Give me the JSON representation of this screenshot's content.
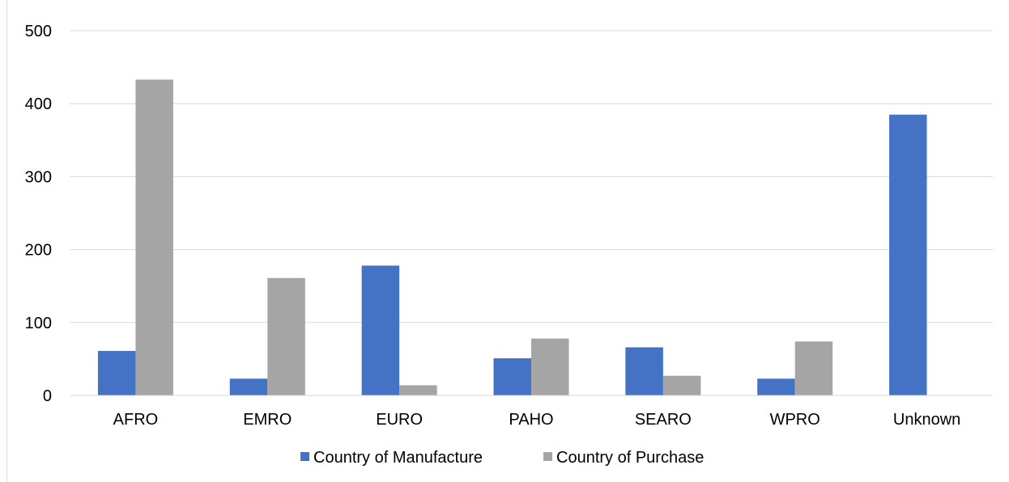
{
  "colors": {
    "manufacture": "#4472C4",
    "purchase": "#A5A5A5",
    "grid": "#d9d9d9"
  },
  "chart_data": {
    "type": "bar",
    "title": "",
    "xlabel": "",
    "ylabel": "",
    "categories": [
      "AFRO",
      "EMRO",
      "EURO",
      "PAHO",
      "SEARO",
      "WPRO",
      "Unknown"
    ],
    "series": [
      {
        "name": "Country of Manufacture",
        "color": "#4472C4",
        "values": [
          61,
          23,
          178,
          51,
          66,
          23,
          385
        ]
      },
      {
        "name": "Country of Purchase",
        "color": "#A5A5A5",
        "values": [
          433,
          161,
          14,
          78,
          27,
          74,
          0
        ]
      }
    ],
    "ylim": [
      0,
      500
    ],
    "yticks": [
      0,
      100,
      200,
      300,
      400,
      500
    ],
    "grid": true,
    "legend": "bottom"
  }
}
